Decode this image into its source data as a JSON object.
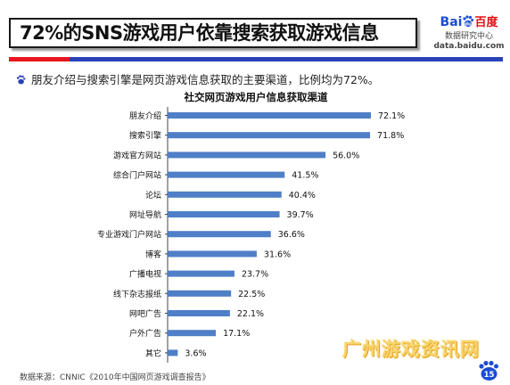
{
  "slide": {
    "title": "72%的SNS游戏用户依靠搜索获取游戏信息",
    "bullet": "朋友介绍与搜索引擎是网页游戏信息获取的主要渠道，比例均为72%。",
    "source": "数据来源：CNNIC《2010年中国网页游戏调查报告》",
    "page_number": "15",
    "watermark": "广州游戏资讯网"
  },
  "logo": {
    "bai": "Bai",
    "du": "du",
    "cn": "百度",
    "subtitle": "数据研究中心",
    "url": "data.baidu.com"
  },
  "colors": {
    "bar": "#4f7fc6",
    "title_red": "#e8171f",
    "title_blue": "#2a43b8"
  },
  "chart_data": {
    "type": "bar",
    "orientation": "horizontal",
    "title": "社交网页游戏用户信息获取渠道",
    "categories": [
      "朋友介绍",
      "搜索引擎",
      "游戏官方网站",
      "综合门户网站",
      "论坛",
      "网址导航",
      "专业游戏门户网站",
      "博客",
      "广播电视",
      "线下杂志报纸",
      "网吧广告",
      "户外广告",
      "其它"
    ],
    "values": [
      72.1,
      71.8,
      56.0,
      41.5,
      40.4,
      39.7,
      36.6,
      31.6,
      23.7,
      22.5,
      22.1,
      17.1,
      3.6
    ],
    "value_labels": [
      "72.1%",
      "71.8%",
      "56.0%",
      "41.5%",
      "40.4%",
      "39.7%",
      "36.6%",
      "31.6%",
      "23.7%",
      "22.5%",
      "22.1%",
      "17.1%",
      "3.6%"
    ],
    "xlim": [
      0,
      72.1
    ],
    "grid": false,
    "legend": "none"
  }
}
